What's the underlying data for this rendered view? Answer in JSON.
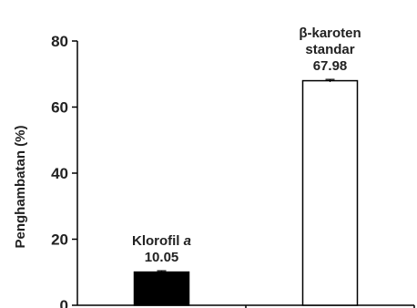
{
  "chart_data": {
    "type": "bar",
    "categories": [
      "Klorofil a",
      "β-karoten standar"
    ],
    "values": [
      10.05,
      67.98
    ],
    "errors": [
      0.4,
      0.4
    ],
    "bar_colors": [
      "#000000",
      "#ffffff"
    ],
    "bar_edge_color": "#000000",
    "title": "",
    "xlabel": "",
    "ylabel": "Penghambatan (%)",
    "ylim": [
      0,
      80
    ],
    "yticks": [
      0,
      20,
      40,
      60,
      80
    ],
    "ytick_labels": [
      "0",
      "20",
      "40",
      "60",
      "80"
    ],
    "grid": false,
    "legend": "none",
    "annotations": [
      {
        "lines": [
          {
            "parts": [
              {
                "text": "Klorofil ",
                "italic": false
              },
              {
                "text": "a",
                "italic": true
              }
            ]
          },
          {
            "parts": [
              {
                "text": "10.05",
                "italic": false
              }
            ]
          }
        ]
      },
      {
        "lines": [
          {
            "parts": [
              {
                "text": "β-karoten",
                "italic": false
              }
            ]
          },
          {
            "parts": [
              {
                "text": "standar",
                "italic": false
              }
            ]
          },
          {
            "parts": [
              {
                "text": "67.98",
                "italic": false
              }
            ]
          }
        ]
      }
    ]
  }
}
